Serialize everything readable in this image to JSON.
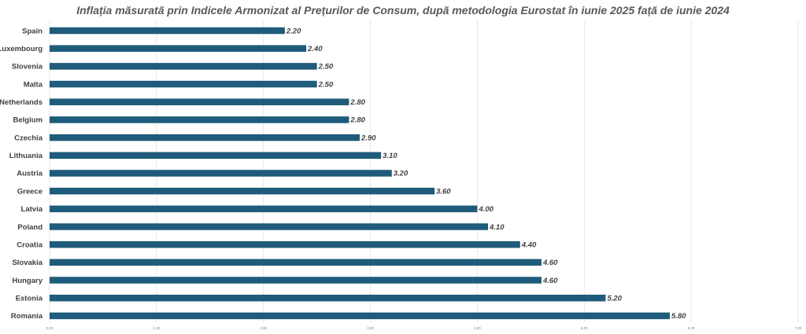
{
  "chart_data": {
    "type": "bar",
    "orientation": "horizontal",
    "title": "Inflația măsurată prin Indicele Armonizat al Prețurilor de Consum, după metodologia Eurostat în iunie 2025 față de iunie 2024",
    "xlabel": "",
    "ylabel": "",
    "categories": [
      "Spain",
      "Luxembourg",
      "Slovenia",
      "Malta",
      "Netherlands",
      "Belgium",
      "Czechia",
      "Lithuania",
      "Austria",
      "Greece",
      "Latvia",
      "Poland",
      "Croatia",
      "Slovakia",
      "Hungary",
      "Estonia",
      "Romania"
    ],
    "values": [
      2.2,
      2.4,
      2.5,
      2.5,
      2.8,
      2.8,
      2.9,
      3.1,
      3.2,
      3.6,
      4.0,
      4.1,
      4.4,
      4.6,
      4.6,
      5.2,
      5.8
    ],
    "value_labels": [
      "2.20",
      "2.40",
      "2.50",
      "2.50",
      "2.80",
      "2.80",
      "2.90",
      "3.10",
      "3.20",
      "3.60",
      "4.00",
      "4.10",
      "4.40",
      "4.60",
      "4.60",
      "5.20",
      "5.80"
    ],
    "xlim": [
      0,
      7
    ],
    "ticks": [
      0,
      1,
      2,
      3,
      4,
      5,
      6,
      7
    ],
    "tick_labels": [
      "0.00",
      "1.00",
      "2.00",
      "3.00",
      "4.00",
      "5.00",
      "6.00",
      "7.00"
    ],
    "grid": true,
    "legend": "none",
    "bar_color": "#1f5b7a",
    "grid_color": "#e6e6e6"
  }
}
